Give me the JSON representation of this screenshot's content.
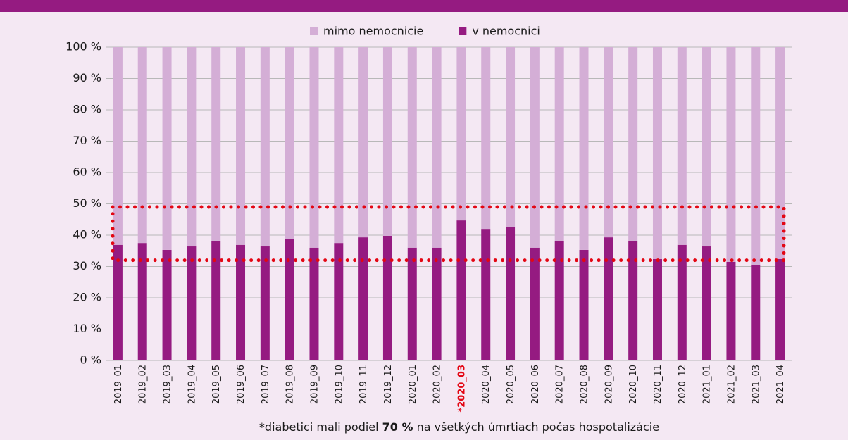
{
  "chart_data": {
    "type": "stacked_bar",
    "categories": [
      "2019_01",
      "2019_02",
      "2019_03",
      "2019_04",
      "2019_05",
      "2019_06",
      "2019_07",
      "2019_08",
      "2019_09",
      "2019_10",
      "2019_11",
      "2019_12",
      "2020_01",
      "2020_02",
      "*2020_03",
      "2020_04",
      "2020_05",
      "2020_06",
      "2020_07",
      "2020_08",
      "2020_09",
      "2020_10",
      "2020_11",
      "2020_12",
      "2021_01",
      "2021_02",
      "2021_03",
      "2021_04"
    ],
    "series": [
      {
        "name": "v nemocnici",
        "color": "#951b81",
        "values": [
          36.9,
          37.5,
          35.3,
          36.4,
          38.2,
          36.9,
          36.4,
          38.7,
          36,
          37.5,
          39.3,
          39.8,
          36,
          36,
          44.7,
          42,
          42.5,
          36,
          38.2,
          35.3,
          39.3,
          38,
          32.4,
          36.9,
          36.4,
          31.5,
          30.6,
          32.4
        ]
      },
      {
        "name": "mimo nemocnicie",
        "color": "#d4aed6",
        "values": [
          63.1,
          62.5,
          64.7,
          63.6,
          61.8,
          63.1,
          63.6,
          61.3,
          64,
          62.5,
          60.7,
          60.2,
          64,
          64,
          55.3,
          58,
          57.5,
          64,
          61.8,
          64.7,
          60.7,
          62,
          67.6,
          63.1,
          63.6,
          68.5,
          69.4,
          67.6
        ]
      }
    ],
    "ylim": [
      0,
      100
    ],
    "yticks": [
      {
        "value": 0,
        "label": "0 %"
      },
      {
        "value": 10,
        "label": "10 %"
      },
      {
        "value": 20,
        "label": "20 %"
      },
      {
        "value": 30,
        "label": "30 %"
      },
      {
        "value": 40,
        "label": "40 %"
      },
      {
        "value": 50,
        "label": "50 %"
      },
      {
        "value": 60,
        "label": "60 %"
      },
      {
        "value": 70,
        "label": "70 %"
      },
      {
        "value": 80,
        "label": "80 %"
      },
      {
        "value": 90,
        "label": "90 %"
      },
      {
        "value": 100,
        "label": "100 %"
      }
    ],
    "grid": true,
    "legend": "top",
    "highlight": {
      "ylim": [
        32,
        49
      ],
      "color": "#e30613",
      "category": 14
    },
    "footnote": [
      "*diabetici mali podiel ",
      "70 %",
      " na všetkých úmrtiach počas hospotalizácie"
    ]
  }
}
